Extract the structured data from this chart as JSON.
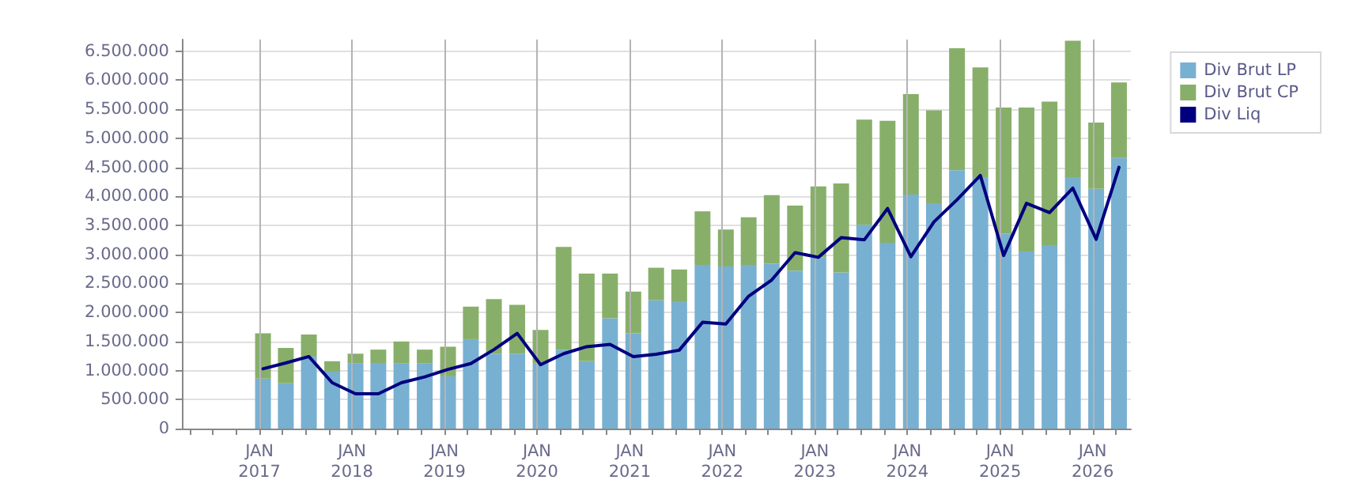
{
  "chart_data": {
    "type": "bar",
    "stacked": true,
    "x": [
      "2017-01-15",
      "2017-04-15",
      "2017-07-15",
      "2017-10-15",
      "2018-01-15",
      "2018-04-15",
      "2018-07-15",
      "2018-10-15",
      "2019-01-15",
      "2019-04-15",
      "2019-07-15",
      "2019-10-15",
      "2020-01-15",
      "2020-04-15",
      "2020-07-15",
      "2020-10-15",
      "2021-01-15",
      "2021-04-15",
      "2021-07-15",
      "2021-10-15",
      "2022-01-15",
      "2022-04-15",
      "2022-07-15",
      "2022-10-15",
      "2023-01-15",
      "2023-04-15",
      "2023-07-15",
      "2023-10-15",
      "2024-01-15",
      "2024-04-15",
      "2024-07-15",
      "2024-10-15",
      "2025-01-15",
      "2025-04-15",
      "2025-07-15",
      "2025-10-15",
      "2026-01-15",
      "2026-04-15"
    ],
    "series": [
      {
        "name": "Div Brut LP",
        "color": "#78b0d2",
        "values": [
          860000,
          780000,
          1240000,
          980000,
          1120000,
          1130000,
          1120000,
          1120000,
          900000,
          1540000,
          1290000,
          1290000,
          1120000,
          1360000,
          1160000,
          1900000,
          1640000,
          2210000,
          2180000,
          2820000,
          2790000,
          2820000,
          2840000,
          2720000,
          2950000,
          2690000,
          3510000,
          3200000,
          4030000,
          3880000,
          4450000,
          4330000,
          3360000,
          3050000,
          3160000,
          4330000,
          4130000,
          4660000
        ]
      },
      {
        "name": "Div Brut CP",
        "color": "#88af6a",
        "values": [
          780000,
          610000,
          380000,
          180000,
          170000,
          230000,
          380000,
          240000,
          510000,
          560000,
          940000,
          840000,
          580000,
          1770000,
          1510000,
          770000,
          720000,
          560000,
          560000,
          920000,
          640000,
          820000,
          1180000,
          1120000,
          1220000,
          1530000,
          1810000,
          2100000,
          1730000,
          1600000,
          2100000,
          1890000,
          2170000,
          2480000,
          2470000,
          2350000,
          1140000,
          1300000
        ]
      },
      {
        "name": "Div Liq",
        "type": "line",
        "color": "#00007f",
        "marker": "none",
        "line_style": "solid",
        "values": [
          1030000,
          1130000,
          1240000,
          790000,
          600000,
          600000,
          790000,
          890000,
          1020000,
          1120000,
          1360000,
          1640000,
          1100000,
          1290000,
          1410000,
          1450000,
          1240000,
          1280000,
          1350000,
          1830000,
          1800000,
          2280000,
          2560000,
          3030000,
          2950000,
          3290000,
          3250000,
          3790000,
          2960000,
          3560000,
          3940000,
          4360000,
          2980000,
          3880000,
          3720000,
          4140000,
          3260000,
          4500000
        ]
      }
    ],
    "xlim": [
      "2016-03-01",
      "2026-06-01"
    ],
    "xticks": [
      {
        "value": "2016-04-01",
        "label": null
      },
      {
        "value": "2016-07-01",
        "label": null
      },
      {
        "value": "2016-10-01",
        "label": null
      },
      {
        "value": "2017-01-01",
        "label": "JAN\n2017"
      },
      {
        "value": "2017-04-01",
        "label": null
      },
      {
        "value": "2017-07-01",
        "label": null
      },
      {
        "value": "2017-10-01",
        "label": null
      },
      {
        "value": "2018-01-01",
        "label": "JAN\n2018"
      },
      {
        "value": "2018-04-01",
        "label": null
      },
      {
        "value": "2018-07-01",
        "label": null
      },
      {
        "value": "2018-10-01",
        "label": null
      },
      {
        "value": "2019-01-01",
        "label": "JAN\n2019"
      },
      {
        "value": "2019-04-01",
        "label": null
      },
      {
        "value": "2019-07-01",
        "label": null
      },
      {
        "value": "2019-10-01",
        "label": null
      },
      {
        "value": "2020-01-01",
        "label": "JAN\n2020"
      },
      {
        "value": "2020-04-01",
        "label": null
      },
      {
        "value": "2020-07-01",
        "label": null
      },
      {
        "value": "2020-10-01",
        "label": null
      },
      {
        "value": "2021-01-01",
        "label": "JAN\n2021"
      },
      {
        "value": "2021-04-01",
        "label": null
      },
      {
        "value": "2021-07-01",
        "label": null
      },
      {
        "value": "2021-10-01",
        "label": null
      },
      {
        "value": "2022-01-01",
        "label": "JAN\n2022"
      },
      {
        "value": "2022-04-01",
        "label": null
      },
      {
        "value": "2022-07-01",
        "label": null
      },
      {
        "value": "2022-10-01",
        "label": null
      },
      {
        "value": "2023-01-01",
        "label": "JAN\n2023"
      },
      {
        "value": "2023-04-01",
        "label": null
      },
      {
        "value": "2023-07-01",
        "label": null
      },
      {
        "value": "2023-10-01",
        "label": null
      },
      {
        "value": "2024-01-01",
        "label": "JAN\n2024"
      },
      {
        "value": "2024-04-01",
        "label": null
      },
      {
        "value": "2024-07-01",
        "label": null
      },
      {
        "value": "2024-10-01",
        "label": null
      },
      {
        "value": "2025-01-01",
        "label": "JAN\n2025"
      },
      {
        "value": "2025-04-01",
        "label": null
      },
      {
        "value": "2025-07-01",
        "label": null
      },
      {
        "value": "2025-10-01",
        "label": null
      },
      {
        "value": "2026-01-01",
        "label": "JAN\n2026"
      },
      {
        "value": "2026-04-01",
        "label": null
      }
    ],
    "ylim": [
      0,
      6700000
    ],
    "yticks": [
      {
        "value": 0,
        "label": "0"
      },
      {
        "value": 500000,
        "label": "500.000"
      },
      {
        "value": 1000000,
        "label": "1.000.000"
      },
      {
        "value": 1500000,
        "label": "1.500.000"
      },
      {
        "value": 2000000,
        "label": "2.000.000"
      },
      {
        "value": 2500000,
        "label": "2.500.000"
      },
      {
        "value": 3000000,
        "label": "3.000.000"
      },
      {
        "value": 3500000,
        "label": "3.500.000"
      },
      {
        "value": 4000000,
        "label": "4.000.000"
      },
      {
        "value": 4500000,
        "label": "4.500.000"
      },
      {
        "value": 5000000,
        "label": "5.000.000"
      },
      {
        "value": 5500000,
        "label": "5.500.000"
      },
      {
        "value": 6000000,
        "label": "6.000.000"
      },
      {
        "value": 6500000,
        "label": "6.500.000"
      }
    ],
    "grid": true,
    "legend": "top right"
  }
}
